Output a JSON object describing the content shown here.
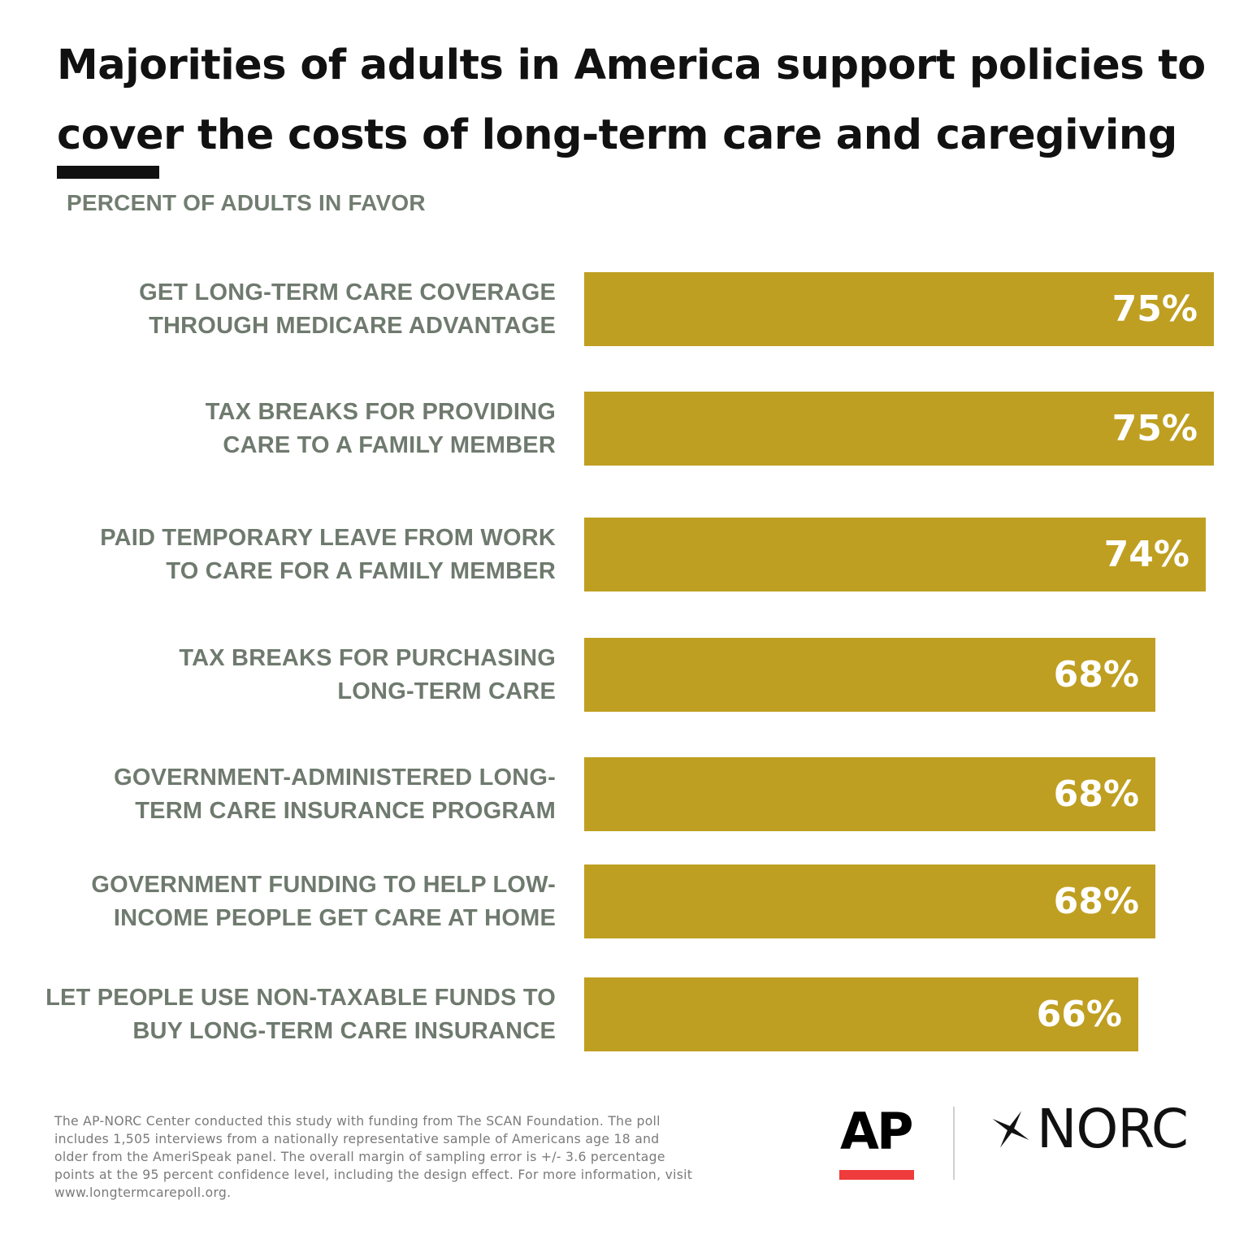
{
  "header": {
    "title": "Majorities of adults in America support policies to cover the costs of long-term care and caregiving",
    "subtitle": "PERCENT OF ADULTS IN FAVOR"
  },
  "chart_data": {
    "type": "bar",
    "orientation": "horizontal",
    "title": "Majorities of adults in America support policies to cover the costs of long-term care and caregiving",
    "subtitle": "PERCENT OF ADULTS IN FAVOR",
    "xlabel": "",
    "ylabel": "",
    "xlim": [
      0,
      75
    ],
    "grid": false,
    "bar_color": "#bf9f21",
    "categories": [
      "GET LONG-TERM CARE COVERAGE THROUGH MEDICARE ADVANTAGE",
      "TAX BREAKS FOR PROVIDING CARE TO A FAMILY MEMBER",
      "PAID TEMPORARY LEAVE FROM WORK TO CARE FOR A FAMILY MEMBER",
      "TAX BREAKS FOR PURCHASING LONG-TERM CARE",
      "GOVERNMENT-ADMINISTERED LONG-TERM CARE INSURANCE PROGRAM",
      "GOVERNMENT FUNDING TO HELP LOW-INCOME PEOPLE GET CARE AT HOME",
      "LET PEOPLE USE NON-TAXABLE FUNDS TO BUY LONG-TERM CARE INSURANCE"
    ],
    "label_lines": [
      [
        "GET LONG-TERM CARE COVERAGE",
        "THROUGH MEDICARE ADVANTAGE"
      ],
      [
        "TAX BREAKS FOR PROVIDING",
        "CARE TO A FAMILY MEMBER"
      ],
      [
        "PAID TEMPORARY LEAVE FROM WORK",
        "TO CARE FOR A FAMILY MEMBER"
      ],
      [
        "TAX BREAKS FOR PURCHASING",
        "LONG-TERM CARE"
      ],
      [
        "GOVERNMENT-ADMINISTERED LONG-",
        "TERM CARE INSURANCE PROGRAM"
      ],
      [
        "GOVERNMENT FUNDING TO HELP LOW-",
        "INCOME PEOPLE GET CARE AT HOME"
      ],
      [
        "LET PEOPLE USE NON-TAXABLE FUNDS TO",
        "BUY LONG-TERM CARE INSURANCE"
      ]
    ],
    "values": [
      75,
      75,
      74,
      68,
      68,
      68,
      66
    ],
    "value_labels": [
      "75%",
      "75%",
      "74%",
      "68%",
      "68%",
      "68%",
      "66%"
    ]
  },
  "footnote": "The AP-NORC Center conducted this study with funding from The SCAN Foundation. The poll includes 1,505 interviews from a nationally representative sample of Americans age 18 and older from the AmeriSpeak panel. The overall margin of sampling error is +/- 3.6 percentage points at the 95 percent confidence level, including the design effect. For more information, visit www.longtermcarepoll.org.",
  "logos": {
    "ap": "AP",
    "norc": "NORC",
    "ap_accent_color": "#ef3b3b",
    "norc_icon": "star-icon"
  }
}
